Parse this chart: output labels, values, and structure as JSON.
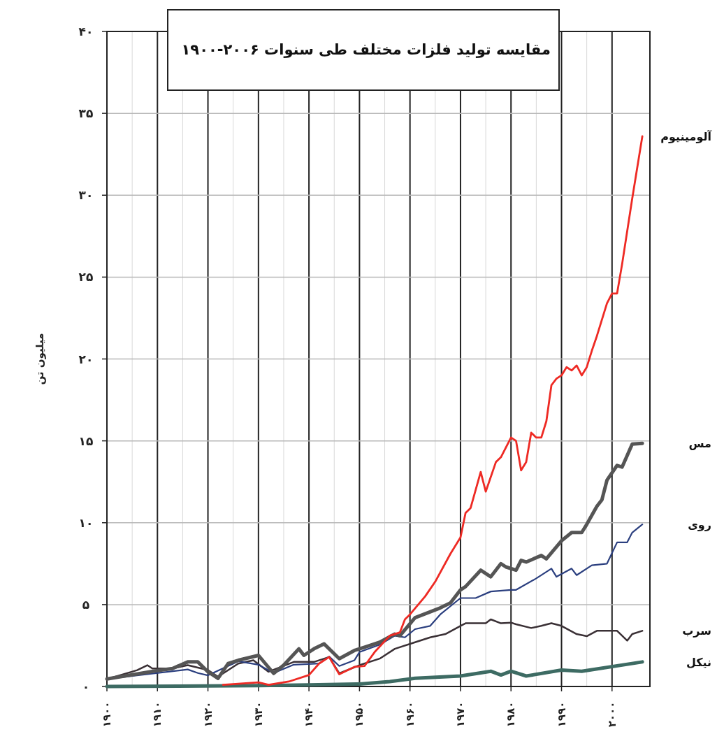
{
  "chart_data": {
    "type": "line",
    "title": "مقایسه تولید فلزات مختلف طی سنوات ۲۰۰۶-۱۹۰۰",
    "ylabel": "میلیون تن",
    "xlim": [
      1900,
      2007.5
    ],
    "ylim": [
      0,
      40
    ],
    "xticks": [
      {
        "value": 1900,
        "label": "۱۹۰۰"
      },
      {
        "value": 1910,
        "label": "۱۹۱۰"
      },
      {
        "value": 1920,
        "label": "۱۹۲۰"
      },
      {
        "value": 1930,
        "label": "۱۹۳۰"
      },
      {
        "value": 1940,
        "label": "۱۹۴۰"
      },
      {
        "value": 1950,
        "label": "۱۹۵۰"
      },
      {
        "value": 1960,
        "label": "۱۹۶۰"
      },
      {
        "value": 1970,
        "label": "۱۹۷۰"
      },
      {
        "value": 1980,
        "label": "۱۹۸۰"
      },
      {
        "value": 1990,
        "label": "۱۹۹۰"
      },
      {
        "value": 2000,
        "label": "۲۰۰۰"
      }
    ],
    "yticks": [
      {
        "value": 0,
        "label": "۰"
      },
      {
        "value": 5,
        "label": "۵"
      },
      {
        "value": 10,
        "label": "۱۰"
      },
      {
        "value": 15,
        "label": "۱۵"
      },
      {
        "value": 20,
        "label": "۲۰"
      },
      {
        "value": 25,
        "label": "۲۵"
      },
      {
        "value": 30,
        "label": "۳۰"
      },
      {
        "value": 35,
        "label": "۳۵"
      },
      {
        "value": 40,
        "label": "۴۰"
      }
    ],
    "grid": true,
    "marker": "none",
    "line_style": "solid",
    "series": [
      {
        "name": "نیکل",
        "color": "#3d6b63",
        "x": [
          1900,
          1930,
          1940,
          1950,
          1956,
          1961,
          1970,
          1976,
          1978,
          1980,
          1983,
          1990,
          1994,
          2006
        ],
        "values": [
          0,
          0.05,
          0.1,
          0.15,
          0.3,
          0.5,
          0.64,
          0.93,
          0.7,
          0.93,
          0.64,
          1.0,
          0.93,
          1.5
        ]
      },
      {
        "name": "سرب",
        "color": "#3a3035",
        "x": [
          1900,
          1906,
          1908,
          1909,
          1913,
          1916,
          1920,
          1922,
          1926,
          1929,
          1932,
          1937,
          1941,
          1944,
          1946,
          1950,
          1954,
          1957,
          1961,
          1964,
          1967,
          1970,
          1971,
          1975,
          1976,
          1978,
          1980,
          1981,
          1984,
          1986,
          1988,
          1990,
          1993,
          1995,
          1997,
          2001,
          2003,
          2004,
          2006
        ],
        "values": [
          0.45,
          1.0,
          1.3,
          1.1,
          1.1,
          1.3,
          1.0,
          0.6,
          1.4,
          1.6,
          0.9,
          1.5,
          1.5,
          1.8,
          0.8,
          1.3,
          1.7,
          2.3,
          2.7,
          3.0,
          3.2,
          3.7,
          3.86,
          3.86,
          4.1,
          3.86,
          3.9,
          3.8,
          3.57,
          3.7,
          3.86,
          3.7,
          3.2,
          3.07,
          3.4,
          3.4,
          2.8,
          3.2,
          3.4
        ]
      },
      {
        "name": "روی",
        "color": "#2b3f7f",
        "x": [
          1900,
          1916,
          1918,
          1920,
          1926,
          1930,
          1933,
          1937,
          1942,
          1944,
          1946,
          1949,
          1950,
          1954,
          1957,
          1959,
          1961,
          1964,
          1966,
          1970,
          1973,
          1976,
          1980,
          1981,
          1985,
          1988,
          1989,
          1992,
          1993,
          1996,
          1999,
          2001,
          2003,
          2004,
          2006
        ],
        "values": [
          0.46,
          1.04,
          0.82,
          0.68,
          1.54,
          1.33,
          0.82,
          1.33,
          1.4,
          1.83,
          1.25,
          1.6,
          2.1,
          2.55,
          3.1,
          3.0,
          3.5,
          3.7,
          4.4,
          5.4,
          5.4,
          5.8,
          5.9,
          5.9,
          6.6,
          7.2,
          6.7,
          7.2,
          6.8,
          7.4,
          7.5,
          8.8,
          8.8,
          9.4,
          9.9
        ]
      },
      {
        "name": "مس",
        "color": "#555555",
        "x": [
          1900,
          1910,
          1913,
          1916,
          1918,
          1920,
          1922,
          1924,
          1926,
          1930,
          1933,
          1935,
          1938,
          1939,
          1941,
          1943,
          1946,
          1949,
          1951,
          1954,
          1957,
          1958,
          1961,
          1966,
          1968,
          1970,
          1971,
          1974,
          1976,
          1978,
          1979,
          1981,
          1982,
          1983,
          1986,
          1987,
          1990,
          1992,
          1994,
          1995,
          1997,
          1998,
          1999,
          2001,
          2002,
          2004,
          2006
        ],
        "values": [
          0.46,
          0.97,
          1.1,
          1.5,
          1.5,
          0.9,
          0.5,
          1.4,
          1.6,
          1.9,
          0.8,
          1.3,
          2.3,
          1.9,
          2.3,
          2.6,
          1.7,
          2.2,
          2.4,
          2.7,
          3.2,
          3.1,
          4.2,
          4.8,
          5.1,
          5.9,
          6.1,
          7.1,
          6.7,
          7.5,
          7.3,
          7.1,
          7.7,
          7.6,
          8.0,
          7.8,
          8.9,
          9.4,
          9.4,
          9.9,
          11.0,
          11.4,
          12.6,
          13.5,
          13.4,
          14.8,
          14.85
        ]
      },
      {
        "name": "آلومینیوم",
        "color": "#ee2a24",
        "x": [
          1923,
          1930,
          1932,
          1936,
          1940,
          1942,
          1944,
          1946,
          1949,
          1951,
          1953,
          1956,
          1958,
          1959,
          1960,
          1963,
          1965,
          1968,
          1970,
          1971,
          1972,
          1974,
          1975,
          1977,
          1978,
          1980,
          1981,
          1982,
          1983,
          1984,
          1985,
          1986,
          1987,
          1988,
          1989,
          1990,
          1991,
          1992,
          1993,
          1994,
          1995,
          1996,
          1997,
          1999,
          2000,
          2001,
          2002,
          2004,
          2006
        ],
        "values": [
          0.1,
          0.25,
          0.1,
          0.3,
          0.7,
          1.4,
          1.8,
          0.75,
          1.2,
          1.25,
          2.1,
          3.1,
          3.3,
          4.1,
          4.4,
          5.5,
          6.4,
          8.1,
          9.1,
          10.6,
          10.9,
          13.1,
          11.9,
          13.7,
          14.0,
          15.2,
          15.0,
          13.2,
          13.7,
          15.5,
          15.2,
          15.2,
          16.2,
          18.4,
          18.8,
          19.0,
          19.5,
          19.3,
          19.6,
          19.0,
          19.5,
          20.5,
          21.4,
          23.4,
          24.0,
          24.0,
          25.8,
          29.8,
          33.6
        ]
      }
    ]
  }
}
